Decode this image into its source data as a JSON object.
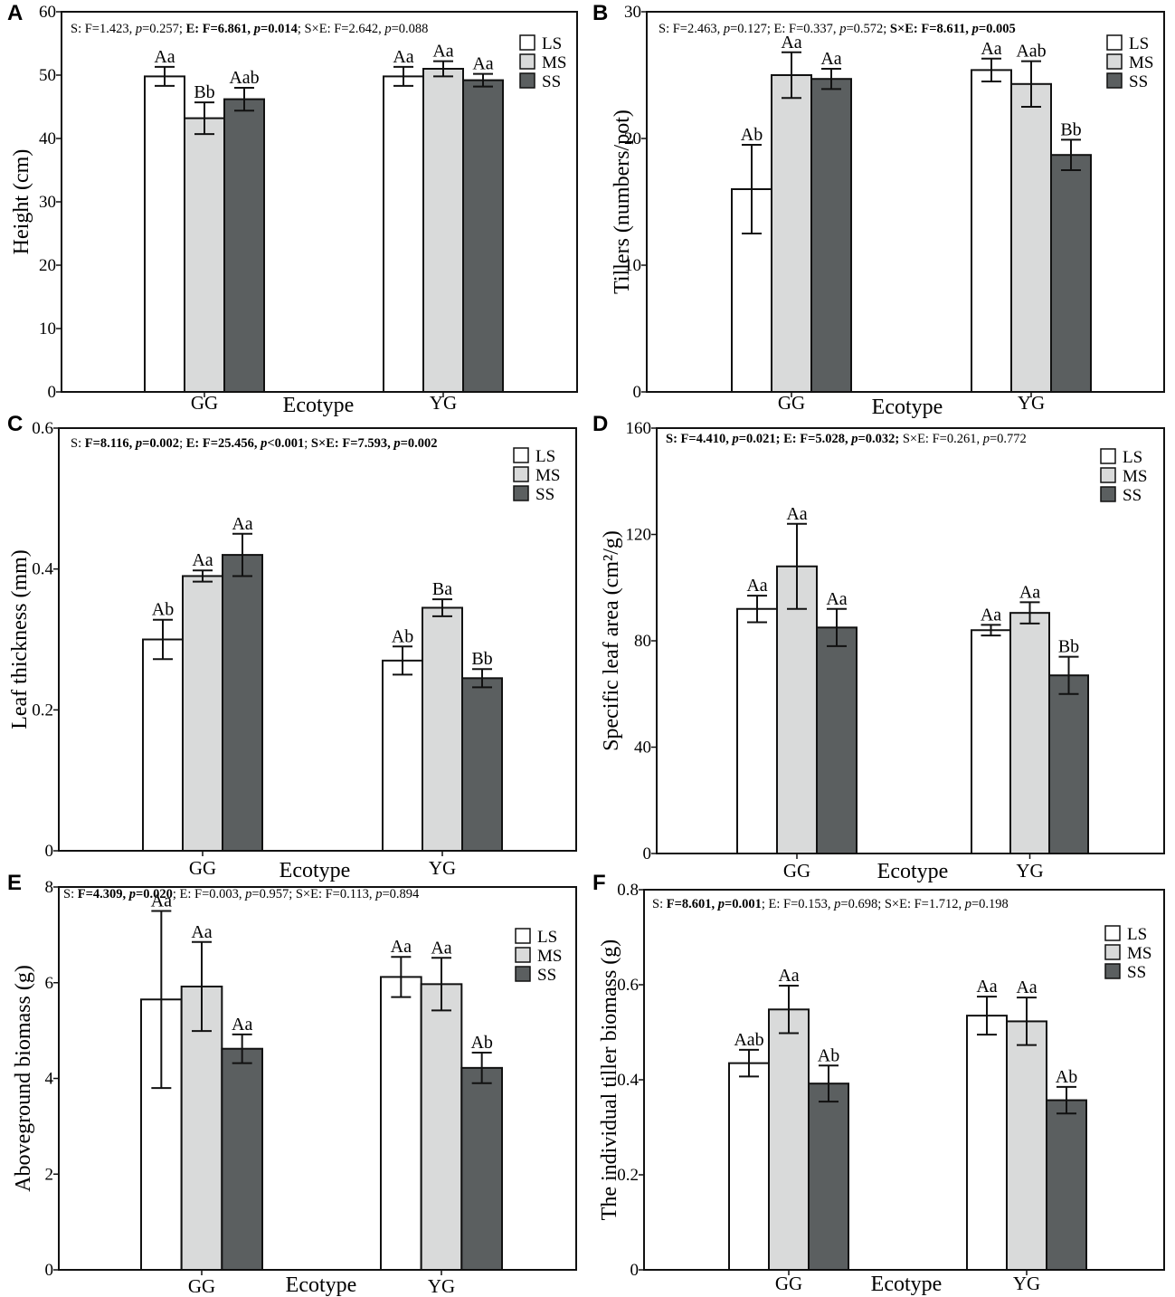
{
  "colors": {
    "LS": "#ffffff",
    "MS": "#d9dada",
    "SS": "#5b5f60"
  },
  "chart_data": [
    {
      "type": "bar",
      "panel": "A",
      "ylabel": "Height (cm)",
      "xlabel": "Ecotype",
      "ylim": [
        0,
        60
      ],
      "yticks": [
        0,
        10,
        20,
        30,
        40,
        50,
        60
      ],
      "categories": [
        "GG",
        "YG"
      ],
      "series": [
        {
          "name": "LS",
          "values": [
            49.8,
            49.8
          ],
          "errors": [
            1.5,
            1.5
          ],
          "letters": [
            "Aa",
            "Aa"
          ]
        },
        {
          "name": "MS",
          "values": [
            43.2,
            51.0
          ],
          "errors": [
            2.5,
            1.2
          ],
          "letters": [
            "Bb",
            "Aa"
          ]
        },
        {
          "name": "SS",
          "values": [
            46.2,
            49.2
          ],
          "errors": [
            1.8,
            1.0
          ],
          "letters": [
            "Aab",
            "Aa"
          ]
        }
      ],
      "stats": [
        {
          "text": "S: F=1.423, ",
          "bold": false
        },
        {
          "text": "p",
          "bold": false,
          "italic": true
        },
        {
          "text": "=0.257; ",
          "bold": false
        },
        {
          "text": "E: F=6.861, ",
          "bold": true
        },
        {
          "text": "p",
          "bold": true,
          "italic": true
        },
        {
          "text": "=0.014",
          "bold": true
        },
        {
          "text": "; S×E: F=2.642, ",
          "bold": false
        },
        {
          "text": "p",
          "bold": false,
          "italic": true
        },
        {
          "text": "=0.088",
          "bold": false
        }
      ]
    },
    {
      "type": "bar",
      "panel": "B",
      "ylabel": "Tillers (numbers/pot)",
      "xlabel": "Ecotype",
      "ylim": [
        0,
        30
      ],
      "yticks": [
        0,
        10,
        20,
        30
      ],
      "categories": [
        "GG",
        "YG"
      ],
      "series": [
        {
          "name": "LS",
          "values": [
            16.0,
            25.4
          ],
          "errors": [
            3.5,
            0.9
          ],
          "letters": [
            "Ab",
            "Aa"
          ]
        },
        {
          "name": "MS",
          "values": [
            25.0,
            24.3
          ],
          "errors": [
            1.8,
            1.8
          ],
          "letters": [
            "Aa",
            "Aab"
          ]
        },
        {
          "name": "SS",
          "values": [
            24.7,
            18.7
          ],
          "errors": [
            0.8,
            1.2
          ],
          "letters": [
            "Aa",
            "Bb"
          ]
        }
      ],
      "stats": [
        {
          "text": "S: F=2.463, ",
          "bold": false
        },
        {
          "text": "p",
          "bold": false,
          "italic": true
        },
        {
          "text": "=0.127; E: F=0.337, ",
          "bold": false
        },
        {
          "text": "p",
          "bold": false,
          "italic": true
        },
        {
          "text": "=0.572; ",
          "bold": false
        },
        {
          "text": "S×E: F=8.611, ",
          "bold": true
        },
        {
          "text": "p",
          "bold": true,
          "italic": true
        },
        {
          "text": "=0.005",
          "bold": true
        }
      ]
    },
    {
      "type": "bar",
      "panel": "C",
      "ylabel": "Leaf thickness (mm)",
      "xlabel": "Ecotype",
      "ylim": [
        0,
        0.6
      ],
      "yticks": [
        0,
        0.2,
        0.4,
        0.6
      ],
      "ytick_labels": [
        "0",
        "0.2",
        "0.4",
        "0.6"
      ],
      "categories": [
        "GG",
        "YG"
      ],
      "series": [
        {
          "name": "LS",
          "values": [
            0.3,
            0.27
          ],
          "errors": [
            0.028,
            0.02
          ],
          "letters": [
            "Ab",
            "Ab"
          ]
        },
        {
          "name": "MS",
          "values": [
            0.39,
            0.345
          ],
          "errors": [
            0.008,
            0.012
          ],
          "letters": [
            "Aa",
            "Ba"
          ]
        },
        {
          "name": "SS",
          "values": [
            0.42,
            0.245
          ],
          "errors": [
            0.03,
            0.013
          ],
          "letters": [
            "Aa",
            "Bb"
          ]
        }
      ],
      "stats": [
        {
          "text": "S: ",
          "bold": false
        },
        {
          "text": "F=8.116, ",
          "bold": true
        },
        {
          "text": "p",
          "bold": true,
          "italic": true
        },
        {
          "text": "=0.002",
          "bold": true
        },
        {
          "text": "; ",
          "bold": false
        },
        {
          "text": "E: F=25.456, ",
          "bold": true
        },
        {
          "text": "p",
          "bold": true,
          "italic": true
        },
        {
          "text": "<0.001",
          "bold": true
        },
        {
          "text": "; ",
          "bold": false
        },
        {
          "text": "S×E: F=7.593, ",
          "bold": true
        },
        {
          "text": "p",
          "bold": true,
          "italic": true
        },
        {
          "text": "=0.002",
          "bold": true
        }
      ]
    },
    {
      "type": "bar",
      "panel": "D",
      "ylabel": "Specific leaf area (cm²/g)",
      "xlabel": "Ecotype",
      "ylim": [
        0,
        160
      ],
      "yticks": [
        0,
        40,
        80,
        120,
        160
      ],
      "categories": [
        "GG",
        "YG"
      ],
      "series": [
        {
          "name": "LS",
          "values": [
            92,
            84
          ],
          "errors": [
            5,
            2
          ],
          "letters": [
            "Aa",
            "Aa"
          ]
        },
        {
          "name": "MS",
          "values": [
            108,
            90.5
          ],
          "errors": [
            16,
            4
          ],
          "letters": [
            "Aa",
            "Aa"
          ]
        },
        {
          "name": "SS",
          "values": [
            85,
            67
          ],
          "errors": [
            7,
            7
          ],
          "letters": [
            "Aa",
            "Bb"
          ]
        }
      ],
      "stats": [
        {
          "text": "S: F=4.410, ",
          "bold": true
        },
        {
          "text": "p",
          "bold": true,
          "italic": true
        },
        {
          "text": "=0.021; E: F=5.028, ",
          "bold": true
        },
        {
          "text": "p",
          "bold": true,
          "italic": true
        },
        {
          "text": "=0.032;",
          "bold": true
        },
        {
          "text": " S×E: F=0.261, ",
          "bold": false
        },
        {
          "text": "p",
          "bold": false,
          "italic": true
        },
        {
          "text": "=0.772",
          "bold": false
        }
      ]
    },
    {
      "type": "bar",
      "panel": "E",
      "ylabel": "Aboveground biomass (g)",
      "xlabel": "Ecotype",
      "ylim": [
        0,
        8
      ],
      "yticks": [
        0,
        2,
        4,
        6,
        8
      ],
      "categories": [
        "GG",
        "YG"
      ],
      "series": [
        {
          "name": "LS",
          "values": [
            5.65,
            6.12
          ],
          "errors": [
            1.85,
            0.42
          ],
          "letters": [
            "Aa",
            "Aa"
          ]
        },
        {
          "name": "MS",
          "values": [
            5.92,
            5.97
          ],
          "errors": [
            0.93,
            0.55
          ],
          "letters": [
            "Aa",
            "Aa"
          ]
        },
        {
          "name": "SS",
          "values": [
            4.62,
            4.22
          ],
          "errors": [
            0.3,
            0.32
          ],
          "letters": [
            "Aa",
            "Ab"
          ]
        }
      ],
      "stats": [
        {
          "text": "S: ",
          "bold": false
        },
        {
          "text": "F=4.309, ",
          "bold": true
        },
        {
          "text": "p",
          "bold": true,
          "italic": true
        },
        {
          "text": "=0.020",
          "bold": true
        },
        {
          "text": "; E: F=0.003, ",
          "bold": false
        },
        {
          "text": "p",
          "bold": false,
          "italic": true
        },
        {
          "text": "=0.957; S×E: F=0.113, ",
          "bold": false
        },
        {
          "text": "p",
          "bold": false,
          "italic": true
        },
        {
          "text": "=0.894",
          "bold": false
        }
      ]
    },
    {
      "type": "bar",
      "panel": "F",
      "ylabel": "The individual tiller biomass (g)",
      "xlabel": "Ecotype",
      "ylim": [
        0,
        0.8
      ],
      "yticks": [
        0,
        0.2,
        0.4,
        0.6,
        0.8
      ],
      "ytick_labels": [
        "0",
        "0.2",
        "0.4",
        "0.6",
        "0.8"
      ],
      "categories": [
        "GG",
        "YG"
      ],
      "series": [
        {
          "name": "LS",
          "values": [
            0.435,
            0.535
          ],
          "errors": [
            0.028,
            0.04
          ],
          "letters": [
            "Aab",
            "Aa"
          ]
        },
        {
          "name": "MS",
          "values": [
            0.548,
            0.523
          ],
          "errors": [
            0.05,
            0.05
          ],
          "letters": [
            "Aa",
            "Aa"
          ]
        },
        {
          "name": "SS",
          "values": [
            0.392,
            0.357
          ],
          "errors": [
            0.038,
            0.028
          ],
          "letters": [
            "Ab",
            "Ab"
          ]
        }
      ],
      "stats": [
        {
          "text": "S: ",
          "bold": false
        },
        {
          "text": "F=8.601, ",
          "bold": true
        },
        {
          "text": "p",
          "bold": true,
          "italic": true
        },
        {
          "text": "=0.001",
          "bold": true
        },
        {
          "text": "; E: F=0.153, ",
          "bold": false
        },
        {
          "text": "p",
          "bold": false,
          "italic": true
        },
        {
          "text": "=0.698; S×E: F=1.712, ",
          "bold": false
        },
        {
          "text": "p",
          "bold": false,
          "italic": true
        },
        {
          "text": "=0.198",
          "bold": false
        }
      ]
    }
  ]
}
